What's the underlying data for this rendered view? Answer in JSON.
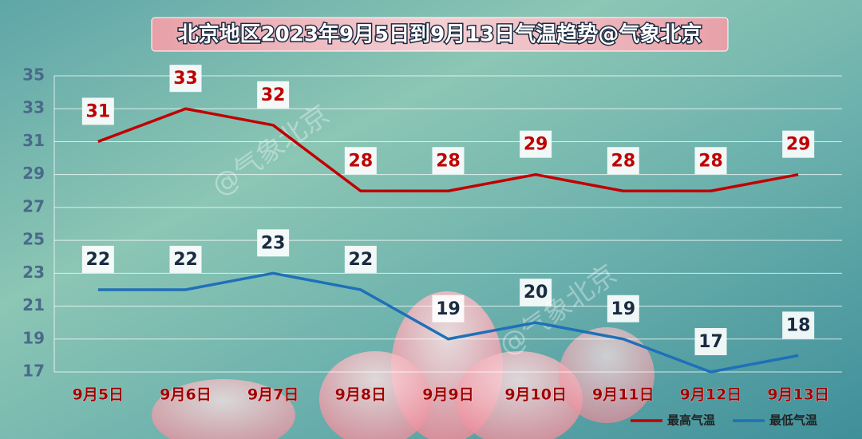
{
  "chart_data": {
    "type": "line",
    "title": "北京地区2023年9月5日到9月13日气温趋势@气象北京",
    "watermark": "@气象北京",
    "categories": [
      "9月5日",
      "9月6日",
      "9月7日",
      "9月8日",
      "9月9日",
      "9月10日",
      "9月11日",
      "9月12日",
      "9月13日"
    ],
    "series": [
      {
        "name": "最高气温",
        "color": "#c00000",
        "values": [
          31,
          33,
          32,
          28,
          28,
          29,
          28,
          28,
          29
        ]
      },
      {
        "name": "最低气温",
        "color": "#1f70b8",
        "values": [
          22,
          22,
          23,
          22,
          19,
          20,
          19,
          17,
          18
        ]
      }
    ],
    "ylim": [
      17,
      35
    ],
    "yticks": [
      17,
      19,
      21,
      23,
      25,
      27,
      29,
      31,
      33,
      35
    ],
    "grid": true,
    "legend": "lower right"
  }
}
